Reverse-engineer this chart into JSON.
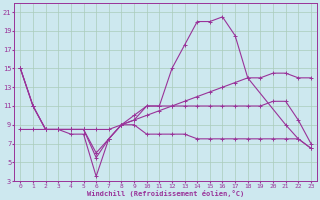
{
  "background_color": "#cde8ef",
  "grid_color": "#aaccbb",
  "line_color": "#993399",
  "xlabel": "Windchill (Refroidissement éolien,°C)",
  "xlim": [
    -0.5,
    23.5
  ],
  "ylim": [
    3,
    22
  ],
  "yticks": [
    3,
    5,
    7,
    9,
    11,
    13,
    15,
    17,
    19,
    21
  ],
  "xticks": [
    0,
    1,
    2,
    3,
    4,
    5,
    6,
    7,
    8,
    9,
    10,
    11,
    12,
    13,
    14,
    15,
    16,
    17,
    18,
    19,
    20,
    21,
    22,
    23
  ],
  "lines": [
    {
      "x": [
        0,
        1,
        2,
        3,
        4,
        5,
        6,
        7,
        8,
        9,
        10,
        11,
        12,
        13,
        14,
        15,
        16,
        17,
        18,
        21,
        22,
        23
      ],
      "y": [
        15,
        11,
        8.5,
        8.5,
        8,
        8,
        3.5,
        7.5,
        9.0,
        10,
        11,
        11,
        15,
        17.5,
        20,
        20,
        20.5,
        18.5,
        14,
        9,
        7.5,
        6.5
      ]
    },
    {
      "x": [
        0,
        1,
        2,
        3,
        4,
        5,
        6,
        7,
        8,
        9,
        10,
        11,
        12,
        13,
        14,
        15,
        16,
        17,
        18,
        19,
        20,
        21,
        22,
        23
      ],
      "y": [
        8.5,
        8.5,
        8.5,
        8.5,
        8.5,
        8.5,
        8.5,
        8.5,
        9.0,
        9.5,
        10,
        10.5,
        11,
        11.5,
        12,
        12.5,
        13,
        13.5,
        14,
        14,
        14.5,
        14.5,
        14.0,
        14.0
      ]
    },
    {
      "x": [
        0,
        1,
        2,
        3,
        4,
        5,
        6,
        7,
        8,
        9,
        10,
        11,
        12,
        13,
        14,
        15,
        16,
        17,
        18,
        19,
        20,
        21,
        22,
        23
      ],
      "y": [
        15,
        11,
        8.5,
        8.5,
        8.5,
        8.5,
        6.0,
        7.5,
        9.0,
        9.5,
        11,
        11,
        11,
        11,
        11,
        11,
        11,
        11,
        11,
        11,
        11.5,
        11.5,
        9.5,
        7.0
      ]
    },
    {
      "x": [
        0,
        1,
        2,
        3,
        4,
        5,
        6,
        7,
        8,
        9,
        10,
        11,
        12,
        13,
        14,
        15,
        16,
        17,
        18,
        19,
        20,
        21,
        22,
        23
      ],
      "y": [
        15,
        11,
        8.5,
        8.5,
        8.5,
        8.5,
        5.5,
        7.5,
        9.0,
        9.0,
        8.0,
        8.0,
        8.0,
        8.0,
        7.5,
        7.5,
        7.5,
        7.5,
        7.5,
        7.5,
        7.5,
        7.5,
        7.5,
        6.5
      ]
    }
  ]
}
